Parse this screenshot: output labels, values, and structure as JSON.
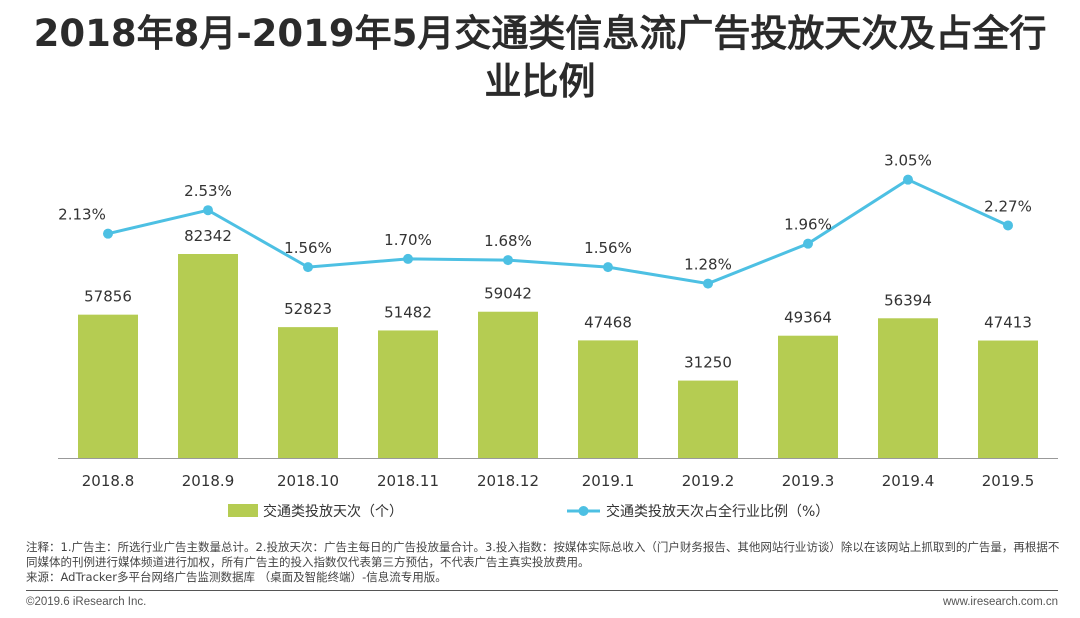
{
  "title": {
    "line1": "2018年8月-2019年5月交通类信息流广告投放天次及占全行",
    "line2": "业比例"
  },
  "chart_data": {
    "type": "bar",
    "categories": [
      "2018.8",
      "2018.9",
      "2018.10",
      "2018.11",
      "2018.12",
      "2019.1",
      "2019.2",
      "2019.3",
      "2019.4",
      "2019.5"
    ],
    "series": [
      {
        "name": "交通类投放天次（个）",
        "type": "bar",
        "values": [
          57856,
          82342,
          52823,
          51482,
          59042,
          47468,
          31250,
          49364,
          56394,
          47413
        ],
        "labels": [
          "57856",
          "82342",
          "52823",
          "51482",
          "59042",
          "47468",
          "31250",
          "49364",
          "56394",
          "47413"
        ]
      },
      {
        "name": "交通类投放天次占全行业比例（%）",
        "type": "line",
        "values": [
          2.13,
          2.53,
          1.56,
          1.7,
          1.68,
          1.56,
          1.28,
          1.96,
          3.05,
          2.27
        ],
        "labels": [
          "2.13%",
          "2.53%",
          "1.56%",
          "1.70%",
          "1.68%",
          "1.56%",
          "1.28%",
          "1.96%",
          "3.05%",
          "2.27%"
        ]
      }
    ],
    "ylim": [
      0,
      100000
    ],
    "y2lim": [
      0,
      4.2
    ],
    "grid": false,
    "legend": "bottom",
    "colors": {
      "bar": "#b5cc52",
      "line": "#4dc0e3",
      "axis": "#999999"
    }
  },
  "notes": {
    "line1": "注释：1.广告主：所选行业广告主数量总计。2.投放天次：广告主每日的广告投放量合计。3.投入指数：按媒体实际总收入（门户财务报告、其他网站行业访谈）除以在该网站上抓取到的广告量，再根据不同媒体的刊例进行媒体频道进行加权，所有广告主的投入指数仅代表第三方预估，不代表广告主真实投放费用。",
    "line2": "来源：AdTracker多平台网络广告监测数据库 （桌面及智能终端）-信息流专用版。"
  },
  "footer": {
    "copyright": "©2019.6 iResearch Inc.",
    "site": "www.iresearch.com.cn"
  }
}
